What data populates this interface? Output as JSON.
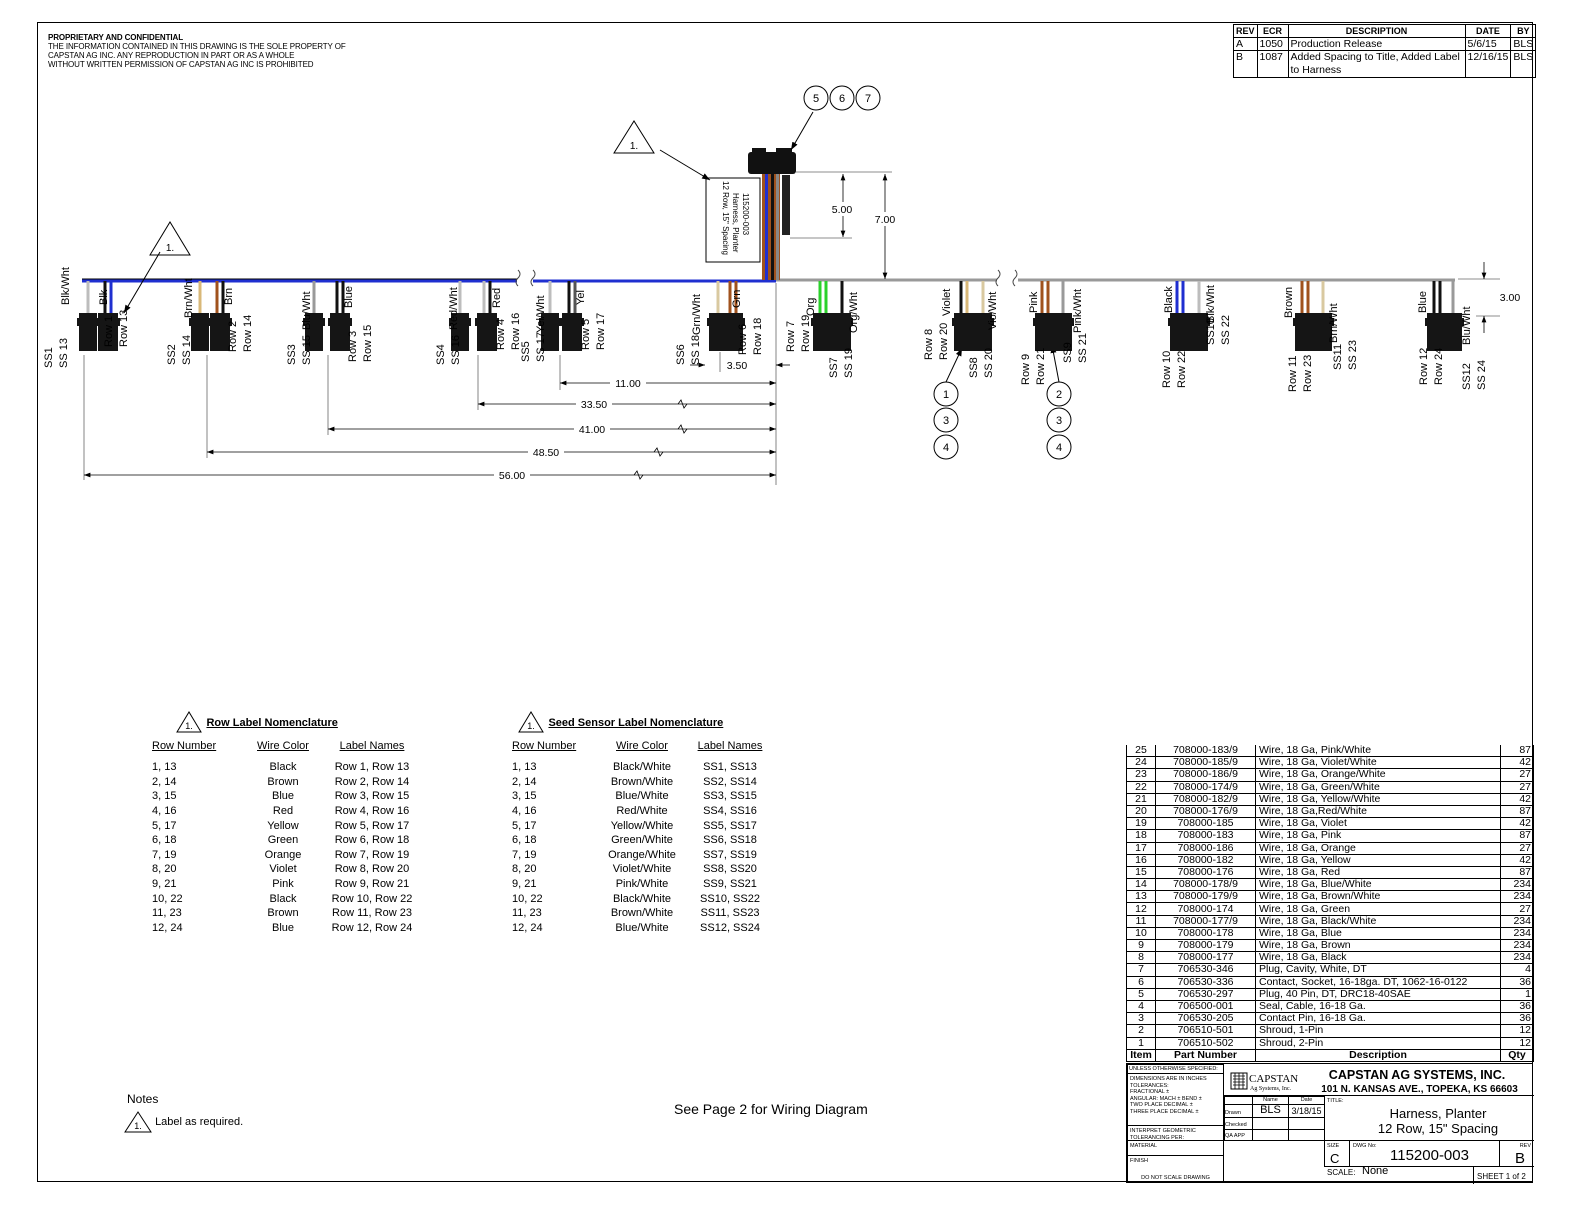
{
  "proprietary": {
    "heading": "PROPRIETARY AND CONFIDENTIAL",
    "lines": [
      "THE INFORMATION CONTAINED IN THIS DRAWING IS THE SOLE PROPERTY OF",
      "CAPSTAN AG INC. ANY REPRODUCTION IN PART OR AS A WHOLE",
      "WITHOUT WRITTEN PERMISSION OF CAPSTAN AG INC IS PROHIBITED"
    ]
  },
  "revisions": {
    "headers": [
      "REV",
      "ECR",
      "DESCRIPTION",
      "DATE",
      "BY"
    ],
    "rows": [
      {
        "rev": "A",
        "ecr": "1050",
        "description": "Production Release",
        "date": "5/6/15",
        "by": "BLS"
      },
      {
        "rev": "B",
        "ecr": "1087",
        "description": "Added Spacing to Title, Added Label to Harness",
        "date": "12/16/15",
        "by": "BLS"
      }
    ]
  },
  "drawing": {
    "harness_label": [
      "115200-003",
      "Harness, Planter",
      "12 Row, 15\" Spacing"
    ],
    "note_flag": "1.",
    "connector_balloons": [
      "5",
      "6",
      "7"
    ],
    "balloons_left": [
      "1",
      "3",
      "4"
    ],
    "balloons_right": [
      "2",
      "3",
      "4"
    ],
    "dimensions": {
      "d500": "5.00",
      "d700": "7.00",
      "d300": "3.00",
      "d350": "3.50",
      "d1100": "11.00",
      "d3350": "33.50",
      "d4100": "41.00",
      "d4850": "48.50",
      "d5600": "56.00"
    },
    "trunk_colors": {
      "left": "#1f2fd0",
      "right": "#9a9a9a"
    },
    "drops": [
      {
        "ss_wire": "Blk/Wht",
        "row_wire": "Blk",
        "ss_labels": [
          "SS1",
          "SS 13"
        ],
        "row_labels": [
          "Row 1",
          "Row 13"
        ],
        "ss_color": "#bdbdbd",
        "row_colors": [
          "#111111",
          "#1f2fd0"
        ]
      },
      {
        "ss_wire": "Brn/Wht",
        "row_wire": "Brn",
        "ss_labels": [
          "SS2",
          "SS 14"
        ],
        "row_labels": [
          "Row 2",
          "Row 14"
        ],
        "ss_color": "#d9b878",
        "row_colors": [
          "#a0521d",
          "#111111"
        ]
      },
      {
        "ss_wire": "Blu/Wht",
        "row_wire": "Blue",
        "ss_labels": [
          "SS3",
          "SS 15"
        ],
        "row_labels": [
          "Row 3",
          "Row 15"
        ],
        "ss_color": "#9a9a9a",
        "row_colors": [
          "#111111",
          "#111111"
        ]
      },
      {
        "ss_wire": "Red/Wht",
        "row_wire": "Red",
        "ss_labels": [
          "SS4",
          "SS 16"
        ],
        "row_labels": [
          "Row 4",
          "Row 16"
        ],
        "ss_color": "#bdbdbd",
        "row_colors": [
          "#bdbdbd",
          "#111111"
        ]
      },
      {
        "ss_wire": "Yel/Wht",
        "row_wire": "Yel",
        "ss_labels": [
          "SS5",
          "SS 17"
        ],
        "row_labels": [
          "Row 5",
          "Row 17"
        ],
        "ss_color": "#bdbdbd",
        "row_colors": [
          "#111111",
          "#555555"
        ]
      },
      {
        "ss_wire": "Grn/Wht",
        "row_wire": "Grn",
        "ss_labels": [
          "SS6",
          "SS 18"
        ],
        "row_labels": [
          "Row 6",
          "Row 18"
        ],
        "ss_color": "#d9c9a0",
        "row_colors": [
          "#a0521d",
          "#a0521d"
        ]
      },
      {
        "ss_wire": "Org/Wht",
        "row_wire": "Org",
        "ss_labels": [
          "SS7",
          "SS 19"
        ],
        "row_labels": [
          "Row 7",
          "Row 19"
        ],
        "ss_color": "#111111",
        "row_colors": [
          "#2bd12b",
          "#2bd12b"
        ]
      },
      {
        "ss_wire": "Vio/Wht",
        "row_wire": "Violet",
        "ss_labels": [
          "SS8",
          "SS 20"
        ],
        "row_labels": [
          "Row 8",
          "Row 20"
        ],
        "ss_color": "#d9c9a0",
        "row_colors": [
          "#111111",
          "#d9b878"
        ]
      },
      {
        "ss_wire": "Pink/Wht",
        "row_wire": "Pink",
        "ss_labels": [
          "SS9",
          "SS 21"
        ],
        "row_labels": [
          "Row 9",
          "Row 21"
        ],
        "ss_color": "#9a9a9a",
        "row_colors": [
          "#a0521d",
          "#a0521d"
        ]
      },
      {
        "ss_wire": "Blk/Wht",
        "row_wire": "Black",
        "ss_labels": [
          "SS10",
          "SS 22"
        ],
        "row_labels": [
          "Row 10",
          "Row 22"
        ],
        "ss_color": "#bdbdbd",
        "row_colors": [
          "#1f2fd0",
          "#1f2fd0"
        ]
      },
      {
        "ss_wire": "Brn/Wht",
        "row_wire": "Brown",
        "ss_labels": [
          "SS11",
          "SS 23"
        ],
        "row_labels": [
          "Row 11",
          "Row 23"
        ],
        "ss_color": "#d9c9a0",
        "row_colors": [
          "#a0521d",
          "#a0521d"
        ]
      },
      {
        "ss_wire": "Blu/Wht",
        "row_wire": "Blue",
        "ss_labels": [
          "SS12",
          "SS 24"
        ],
        "row_labels": [
          "Row 12",
          "Row 24"
        ],
        "ss_color": "#9a9a9a",
        "row_colors": [
          "#111111",
          "#111111"
        ]
      }
    ]
  },
  "row_legend": {
    "flag": "1.",
    "title": "Row Label Nomenclature",
    "headers": [
      "Row Number",
      "Wire Color",
      "Label Names"
    ],
    "rows": [
      [
        "1, 13",
        "Black",
        "Row 1, Row 13"
      ],
      [
        "2, 14",
        "Brown",
        "Row 2, Row 14"
      ],
      [
        "3, 15",
        "Blue",
        "Row 3, Row 15"
      ],
      [
        "4, 16",
        "Red",
        "Row 4, Row 16"
      ],
      [
        "5, 17",
        "Yellow",
        "Row 5, Row 17"
      ],
      [
        "6, 18",
        "Green",
        "Row 6, Row 18"
      ],
      [
        "7, 19",
        "Orange",
        "Row 7, Row 19"
      ],
      [
        "8, 20",
        "Violet",
        "Row 8, Row 20"
      ],
      [
        "9, 21",
        "Pink",
        "Row 9, Row 21"
      ],
      [
        "10, 22",
        "Black",
        "Row 10, Row 22"
      ],
      [
        "11, 23",
        "Brown",
        "Row 11, Row 23"
      ],
      [
        "12, 24",
        "Blue",
        "Row 12, Row 24"
      ]
    ]
  },
  "seed_legend": {
    "flag": "1.",
    "title": "Seed Sensor Label Nomenclature",
    "headers": [
      "Row Number",
      "Wire Color",
      "Label Names"
    ],
    "rows": [
      [
        "1, 13",
        "Black/White",
        "SS1, SS13"
      ],
      [
        "2, 14",
        "Brown/White",
        "SS2, SS14"
      ],
      [
        "3, 15",
        "Blue/White",
        "SS3, SS15"
      ],
      [
        "4, 16",
        "Red/White",
        "SS4, SS16"
      ],
      [
        "5, 17",
        "Yellow/White",
        "SS5, SS17"
      ],
      [
        "6, 18",
        "Green/White",
        "SS6, SS18"
      ],
      [
        "7, 19",
        "Orange/White",
        "SS7, SS19"
      ],
      [
        "8, 20",
        "Violet/White",
        "SS8, SS20"
      ],
      [
        "9, 21",
        "Pink/White",
        "SS9, SS21"
      ],
      [
        "10, 22",
        "Black/White",
        "SS10, SS22"
      ],
      [
        "11, 23",
        "Brown/White",
        "SS11, SS23"
      ],
      [
        "12, 24",
        "Blue/White",
        "SS12, SS24"
      ]
    ]
  },
  "notes": {
    "title": "Notes",
    "flag": "1.",
    "text": "Label as required."
  },
  "page_note": "See Page 2 for Wiring Diagram",
  "bom": {
    "headers": [
      "Item",
      "Part Number",
      "Description",
      "Qty"
    ],
    "rows": [
      [
        "25",
        "708000-183/9",
        "Wire, 18 Ga, Pink/White",
        "87"
      ],
      [
        "24",
        "708000-185/9",
        "Wire, 18 Ga, Violet/White",
        "42"
      ],
      [
        "23",
        "708000-186/9",
        "Wire, 18 Ga, Orange/White",
        "27"
      ],
      [
        "22",
        "708000-174/9",
        "Wire, 18 Ga, Green/White",
        "27"
      ],
      [
        "21",
        "708000-182/9",
        "Wire, 18 Ga, Yellow/White",
        "42"
      ],
      [
        "20",
        "708000-176/9",
        "Wire, 18 Ga,Red/White",
        "87"
      ],
      [
        "19",
        "708000-185",
        "Wire, 18 Ga, Violet",
        "42"
      ],
      [
        "18",
        "708000-183",
        "Wire, 18 Ga, Pink",
        "87"
      ],
      [
        "17",
        "708000-186",
        "Wire, 18 Ga, Orange",
        "27"
      ],
      [
        "16",
        "708000-182",
        "Wire, 18 Ga, Yellow",
        "42"
      ],
      [
        "15",
        "708000-176",
        "Wire, 18 Ga, Red",
        "87"
      ],
      [
        "14",
        "708000-178/9",
        "Wire, 18 Ga, Blue/White",
        "234"
      ],
      [
        "13",
        "708000-179/9",
        "Wire, 18 Ga, Brown/White",
        "234"
      ],
      [
        "12",
        "708000-174",
        "Wire, 18 Ga, Green",
        "27"
      ],
      [
        "11",
        "708000-177/9",
        "Wire, 18 Ga, Black/White",
        "234"
      ],
      [
        "10",
        "708000-178",
        "Wire, 18 Ga, Blue",
        "234"
      ],
      [
        "9",
        "708000-179",
        "Wire, 18 Ga, Brown",
        "234"
      ],
      [
        "8",
        "708000-177",
        "Wire, 18 Ga, Black",
        "234"
      ],
      [
        "7",
        "706530-346",
        "Plug, Cavity, White, DT",
        "4"
      ],
      [
        "6",
        "706530-336",
        "Contact, Socket, 16-18ga. DT, 1062-16-0122",
        "36"
      ],
      [
        "5",
        "706530-297",
        "Plug, 40 Pin, DT, DRC18-40SAE",
        "1"
      ],
      [
        "4",
        "706500-001",
        "Seal, Cable, 16-18 Ga.",
        "36"
      ],
      [
        "3",
        "706530-205",
        "Contact Pin, 16-18 Ga.",
        "36"
      ],
      [
        "2",
        "706510-501",
        "Shroud, 1-Pin",
        "12"
      ],
      [
        "1",
        "706510-502",
        "Shroud, 2-Pin",
        "12"
      ]
    ]
  },
  "title_block": {
    "unless": "UNLESS OTHERWISE SPECIFIED:",
    "tolerances": [
      "DIMENSIONS ARE IN INCHES",
      "TOLERANCES:",
      "FRACTIONAL ±",
      "ANGULAR: MACH ±   BEND ±",
      "TWO PLACE DECIMAL  ±",
      "THREE PLACE DECIMAL ±"
    ],
    "interpret": [
      "INTERPRET GEOMETRIC",
      "TOLERANCING PER:"
    ],
    "material": "MATERIAL",
    "finish": "FINISH",
    "do_not_scale": "DO NOT SCALE DRAWING",
    "logo_text": "CAPSTAN",
    "logo_sub": "Ag Systems, Inc.",
    "company": "CAPSTAN AG SYSTEMS, INC.",
    "address": "101 N. KANSAS AVE., TOPEKA, KS 66603",
    "name_header": "Name",
    "date_header": "Date",
    "drawn_label": "Drawn",
    "drawn_by": "BLS",
    "drawn_date": "3/18/15",
    "checked_label": "Checked",
    "qa_label": "QA APP",
    "title_label": "TITLE:",
    "title_lines": [
      "Harness, Planter",
      "12 Row, 15\" Spacing"
    ],
    "size_label": "SIZE",
    "size": "C",
    "dwg_label": "DWG No:",
    "dwg_no": "115200-003",
    "rev_label": "REV",
    "rev": "B",
    "scale_label": "SCALE:",
    "scale": "None",
    "sheet": "SHEET 1 of 2"
  }
}
